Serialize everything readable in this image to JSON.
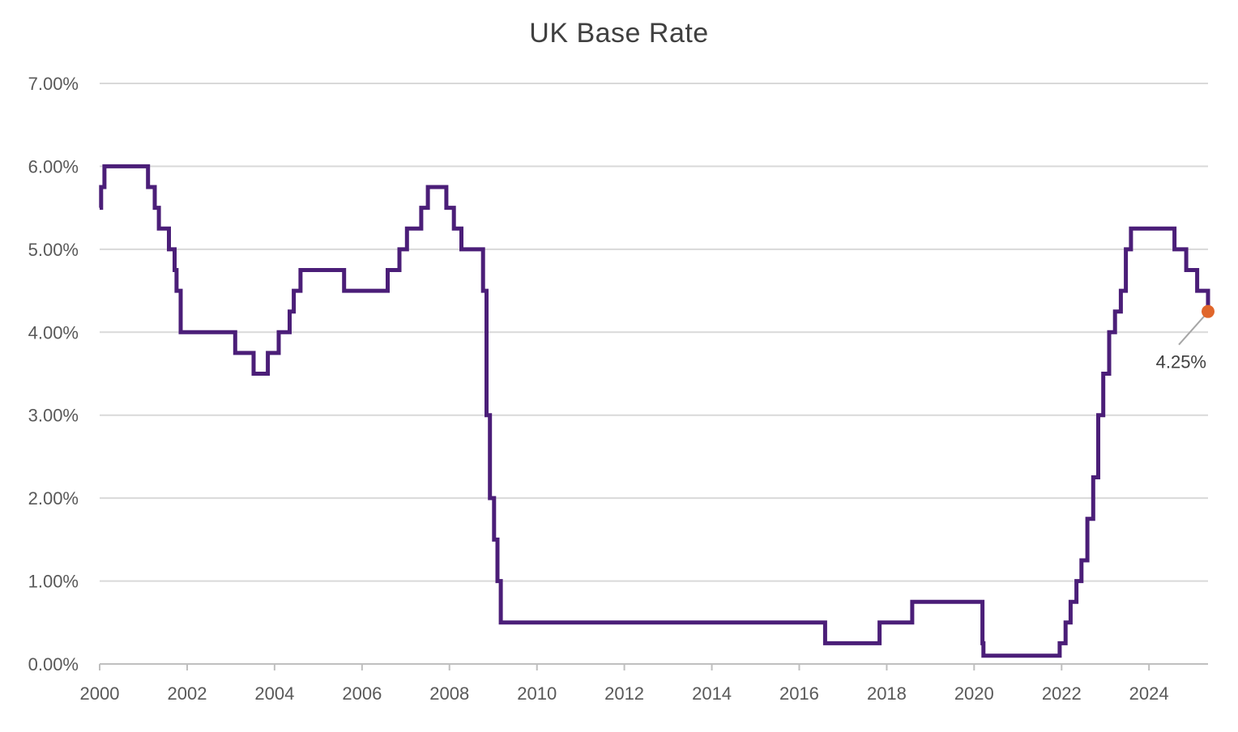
{
  "chart_data": {
    "type": "line",
    "title": "UK Base Rate",
    "xlabel": "",
    "ylabel": "",
    "x_tick_labels": [
      "2000",
      "2002",
      "2004",
      "2006",
      "2008",
      "2010",
      "2012",
      "2014",
      "2016",
      "2018",
      "2020",
      "2022",
      "2024"
    ],
    "y_tick_labels": [
      "0.00%",
      "1.00%",
      "2.00%",
      "3.00%",
      "4.00%",
      "5.00%",
      "6.00%",
      "7.00%"
    ],
    "xlim": [
      "2000-01-01",
      "2025-05-08"
    ],
    "ylim": [
      0,
      7
    ],
    "grid": "horizontal",
    "legend": "none",
    "step": true,
    "series": [
      {
        "color": "#4b1e78",
        "x": [
          "2000-01-01",
          "2000-01-13",
          "2000-02-10",
          "2001-02-08",
          "2001-04-05",
          "2001-05-10",
          "2001-08-02",
          "2001-09-18",
          "2001-10-04",
          "2001-11-08",
          "2003-02-06",
          "2003-07-10",
          "2003-11-06",
          "2004-02-05",
          "2004-05-06",
          "2004-06-10",
          "2004-08-05",
          "2005-08-04",
          "2006-08-03",
          "2006-11-09",
          "2007-01-11",
          "2007-05-10",
          "2007-07-05",
          "2007-12-06",
          "2008-02-07",
          "2008-04-10",
          "2008-10-08",
          "2008-11-06",
          "2008-12-04",
          "2009-01-08",
          "2009-02-05",
          "2009-03-05",
          "2016-08-04",
          "2017-11-02",
          "2018-08-02",
          "2020-03-11",
          "2020-03-19",
          "2021-12-16",
          "2022-02-03",
          "2022-03-17",
          "2022-05-05",
          "2022-06-16",
          "2022-08-04",
          "2022-09-22",
          "2022-11-03",
          "2022-12-15",
          "2023-02-02",
          "2023-03-23",
          "2023-05-11",
          "2023-06-22",
          "2023-08-03",
          "2024-08-01",
          "2024-11-07",
          "2025-02-06",
          "2025-05-08"
        ],
        "values": [
          5.5,
          5.75,
          6.0,
          5.75,
          5.5,
          5.25,
          5.0,
          4.75,
          4.5,
          4.0,
          3.75,
          3.5,
          3.75,
          4.0,
          4.25,
          4.5,
          4.75,
          4.5,
          4.75,
          5.0,
          5.25,
          5.5,
          5.75,
          5.5,
          5.25,
          5.0,
          4.5,
          3.0,
          2.0,
          1.5,
          1.0,
          0.5,
          0.25,
          0.5,
          0.75,
          0.25,
          0.1,
          0.25,
          0.5,
          0.75,
          1.0,
          1.25,
          1.75,
          2.25,
          3.0,
          3.5,
          4.0,
          4.25,
          4.5,
          5.0,
          5.25,
          5.0,
          4.75,
          4.5,
          4.25
        ]
      }
    ],
    "annotations": [
      {
        "text": "4.25%",
        "x": "2025-05-08",
        "y": 4.25,
        "marker_color": "#e0662b"
      }
    ]
  }
}
